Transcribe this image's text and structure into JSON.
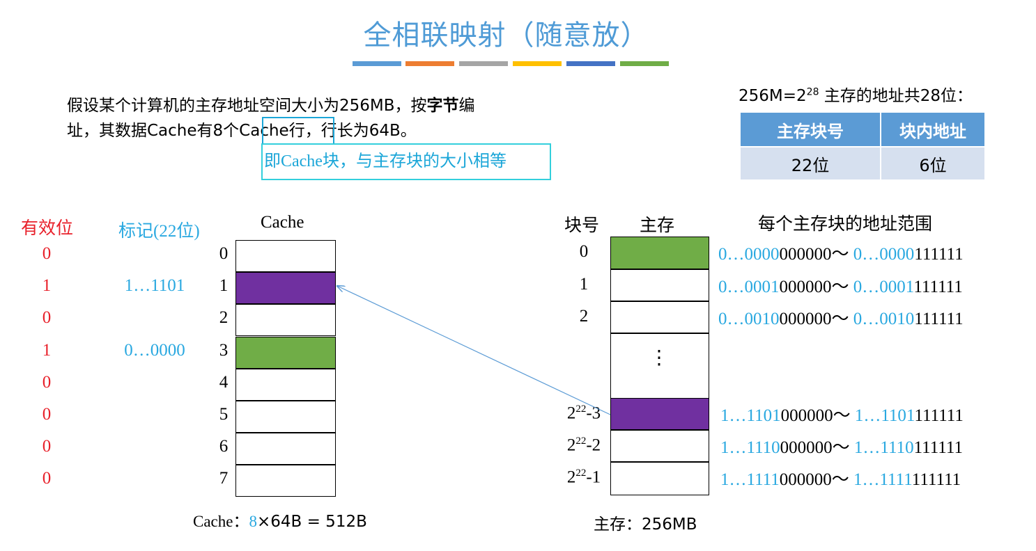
{
  "title": "全相联映射（随意放）",
  "accent_colors": [
    "#5b9bd5",
    "#ed7d31",
    "#a5a5a5",
    "#ffc000",
    "#4472c4",
    "#70ad47"
  ],
  "intro": {
    "line1_a": "假设某个计算机的主存地址空间大小为256MB，按",
    "line1_bold": "字节",
    "line1_b": "编",
    "line2_a": "址，其数据Cache有8个",
    "line2_box": "Cache行",
    "line2_b": "，行长为64B。"
  },
  "note": "即Cache块，与主存块的大小相等",
  "address": {
    "title_pre": "256M=2",
    "title_sup": "28",
    "title_post": " 主存的地址共28位：",
    "headers": [
      "主存块号",
      "块内地址"
    ],
    "values": [
      "22位",
      "6位"
    ]
  },
  "cache": {
    "valid_label": "有效位",
    "tag_label": "标记(22位)",
    "title": "Cache",
    "rows": [
      {
        "index": "0",
        "valid": "0",
        "tag": "",
        "color": ""
      },
      {
        "index": "1",
        "valid": "1",
        "tag": "1…1101",
        "color": "#7030a0"
      },
      {
        "index": "2",
        "valid": "0",
        "tag": "",
        "color": ""
      },
      {
        "index": "3",
        "valid": "1",
        "tag": "0…0000",
        "color": "#70ad47"
      },
      {
        "index": "4",
        "valid": "0",
        "tag": "",
        "color": ""
      },
      {
        "index": "5",
        "valid": "0",
        "tag": "",
        "color": ""
      },
      {
        "index": "6",
        "valid": "0",
        "tag": "",
        "color": ""
      },
      {
        "index": "7",
        "valid": "0",
        "tag": "",
        "color": ""
      }
    ],
    "caption_pre": "Cache：",
    "caption_num": "8",
    "caption_post": "×64B = 512B"
  },
  "memory": {
    "block_label": "块号",
    "title": "主存",
    "range_label": "每个主存块的地址范围",
    "ellipsis": "⋮",
    "blocks": [
      {
        "num": "0",
        "sup": "",
        "suffix": "",
        "color": "#70ad47",
        "r1b": "0…0000",
        "r1k": "000000～ ",
        "r2b": "0…0000",
        "r2k": "111111"
      },
      {
        "num": "1",
        "sup": "",
        "suffix": "",
        "color": "",
        "r1b": "0…0001",
        "r1k": "000000～ ",
        "r2b": "0…0001",
        "r2k": "111111"
      },
      {
        "num": "2",
        "sup": "",
        "suffix": "",
        "color": "",
        "r1b": "0…0010",
        "r1k": "000000～ ",
        "r2b": "0…0010",
        "r2k": "111111"
      },
      {
        "num": "2",
        "sup": "22",
        "suffix": "-3",
        "color": "#7030a0",
        "r1b": "1…1101",
        "r1k": "000000～ ",
        "r2b": "1…1101",
        "r2k": "111111"
      },
      {
        "num": "2",
        "sup": "22",
        "suffix": "-2",
        "color": "",
        "r1b": "1…1110",
        "r1k": "000000～ ",
        "r2b": "1…1110",
        "r2k": "111111"
      },
      {
        "num": "2",
        "sup": "22",
        "suffix": "-1",
        "color": "",
        "r1b": "1…1111",
        "r1k": "000000～ ",
        "r2b": "1…1111",
        "r2k": "111111"
      }
    ],
    "caption": "主存：256MB"
  }
}
